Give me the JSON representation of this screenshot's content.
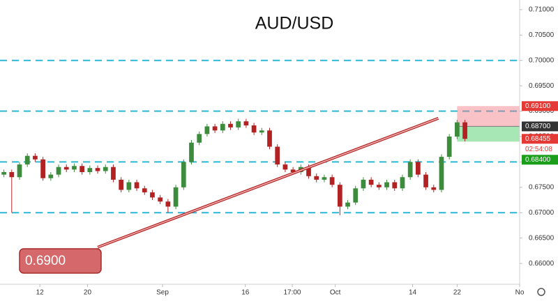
{
  "chart_data": {
    "type": "candlestick",
    "title": "AUD/USD",
    "up_color": "#3d8b3d",
    "down_color": "#b22222",
    "x": [
      0,
      1,
      2,
      3,
      4,
      5,
      6,
      7,
      8,
      9,
      10,
      11,
      12,
      13,
      14,
      15,
      16,
      17,
      18,
      19,
      20,
      21,
      22,
      23,
      24,
      25,
      26,
      27,
      28,
      29,
      30,
      31,
      32,
      33,
      34,
      35,
      36,
      37,
      38,
      39,
      40,
      41,
      42,
      43,
      44,
      45,
      46,
      47,
      48,
      49,
      50,
      51,
      52,
      53,
      54,
      55,
      56,
      57,
      58,
      59
    ],
    "open": [
      0.6775,
      0.678,
      0.677,
      0.6795,
      0.6812,
      0.6805,
      0.6768,
      0.6775,
      0.679,
      0.6785,
      0.6792,
      0.678,
      0.6788,
      0.6782,
      0.679,
      0.6765,
      0.6745,
      0.676,
      0.6748,
      0.674,
      0.673,
      0.6722,
      0.6712,
      0.675,
      0.68,
      0.6838,
      0.6855,
      0.687,
      0.6862,
      0.6875,
      0.6868,
      0.688,
      0.6872,
      0.6858,
      0.6862,
      0.683,
      0.6795,
      0.6785,
      0.678,
      0.679,
      0.6772,
      0.6765,
      0.677,
      0.6755,
      0.6712,
      0.672,
      0.6748,
      0.6765,
      0.6755,
      0.675,
      0.676,
      0.6748,
      0.677,
      0.68,
      0.6775,
      0.675,
      0.6745,
      0.681,
      0.685,
      0.6878
    ],
    "high": [
      0.6785,
      0.6785,
      0.68,
      0.6817,
      0.6817,
      0.681,
      0.678,
      0.6795,
      0.6795,
      0.6797,
      0.6797,
      0.6793,
      0.6793,
      0.6795,
      0.6795,
      0.677,
      0.6765,
      0.6765,
      0.6753,
      0.6745,
      0.6735,
      0.6727,
      0.6755,
      0.6805,
      0.6843,
      0.686,
      0.6875,
      0.6875,
      0.688,
      0.688,
      0.6885,
      0.6885,
      0.6877,
      0.6867,
      0.6867,
      0.6835,
      0.68,
      0.679,
      0.6795,
      0.6795,
      0.6777,
      0.6775,
      0.6775,
      0.676,
      0.6725,
      0.6753,
      0.677,
      0.677,
      0.676,
      0.6765,
      0.6765,
      0.6775,
      0.6805,
      0.6805,
      0.678,
      0.6755,
      0.6815,
      0.6855,
      0.6883,
      0.6883
    ],
    "low": [
      0.677,
      0.67,
      0.6765,
      0.679,
      0.68,
      0.6763,
      0.6763,
      0.677,
      0.678,
      0.678,
      0.6775,
      0.6775,
      0.6777,
      0.6777,
      0.676,
      0.674,
      0.674,
      0.6743,
      0.6735,
      0.6725,
      0.6717,
      0.67,
      0.6707,
      0.6745,
      0.6795,
      0.6833,
      0.685,
      0.6857,
      0.6857,
      0.6863,
      0.6863,
      0.6867,
      0.6853,
      0.6853,
      0.6825,
      0.679,
      0.678,
      0.6775,
      0.6775,
      0.6767,
      0.676,
      0.676,
      0.675,
      0.6695,
      0.6707,
      0.6715,
      0.6743,
      0.675,
      0.6745,
      0.6745,
      0.6743,
      0.6743,
      0.6765,
      0.677,
      0.6745,
      0.674,
      0.674,
      0.6805,
      0.6845,
      0.68405
    ],
    "close": [
      0.678,
      0.677,
      0.6795,
      0.6812,
      0.6805,
      0.6768,
      0.6775,
      0.679,
      0.6785,
      0.6792,
      0.678,
      0.6788,
      0.6782,
      0.679,
      0.6765,
      0.6745,
      0.676,
      0.6748,
      0.674,
      0.673,
      0.6722,
      0.6712,
      0.675,
      0.68,
      0.6838,
      0.6855,
      0.687,
      0.6862,
      0.6875,
      0.6868,
      0.688,
      0.6872,
      0.6858,
      0.6862,
      0.683,
      0.6795,
      0.6785,
      0.678,
      0.679,
      0.6772,
      0.6765,
      0.677,
      0.6755,
      0.6712,
      0.672,
      0.6748,
      0.6765,
      0.6755,
      0.675,
      0.676,
      0.6748,
      0.677,
      0.68,
      0.6775,
      0.675,
      0.6745,
      0.681,
      0.685,
      0.6878,
      0.68455
    ],
    "xlim": [
      -0.5,
      66
    ],
    "xticks": [
      {
        "value": 4.6,
        "label": "12"
      },
      {
        "value": 10.7,
        "label": "20"
      },
      {
        "value": 20.3,
        "label": "Sep"
      },
      {
        "value": 30.9,
        "label": "16"
      },
      {
        "value": 36.9,
        "label": "17:00"
      },
      {
        "value": 42.4,
        "label": "Oct"
      },
      {
        "value": 52.3,
        "label": "14"
      },
      {
        "value": 58,
        "label": "22"
      },
      {
        "value": 66,
        "label": "No"
      }
    ],
    "ylim": [
      0.6559,
      0.7119
    ],
    "yticks": [
      {
        "value": 0.66,
        "label": "0.66000"
      },
      {
        "value": 0.665,
        "label": "0.66500"
      },
      {
        "value": 0.67,
        "label": "0.67000"
      },
      {
        "value": 0.675,
        "label": "0.67500"
      },
      {
        "value": 0.68,
        "label": "0.68000"
      },
      {
        "value": 0.685,
        "label": "0.68500"
      },
      {
        "value": 0.69,
        "label": "0.69000"
      },
      {
        "value": 0.695,
        "label": "0.69500"
      },
      {
        "value": 0.7,
        "label": "0.70000"
      },
      {
        "value": 0.705,
        "label": "0.70500"
      },
      {
        "value": 0.71,
        "label": "0.71000"
      }
    ],
    "levels": [
      0.67,
      0.68,
      0.69,
      0.7
    ],
    "level_color": "#2ab7d6",
    "trendline": {
      "x": [
        12,
        55.6
      ],
      "y": [
        0.6632,
        0.6886
      ],
      "color": "#b22222"
    },
    "annotation": "0.6900",
    "position": {
      "x_start": 58,
      "stop": 0.691,
      "entry": 0.687,
      "target": 0.684,
      "value_labels": [
        "0.69100",
        "0.68700",
        "0.68400"
      ]
    },
    "last_price": {
      "value": 0.68455,
      "label": "0.68455",
      "countdown": "02:54:08"
    }
  }
}
